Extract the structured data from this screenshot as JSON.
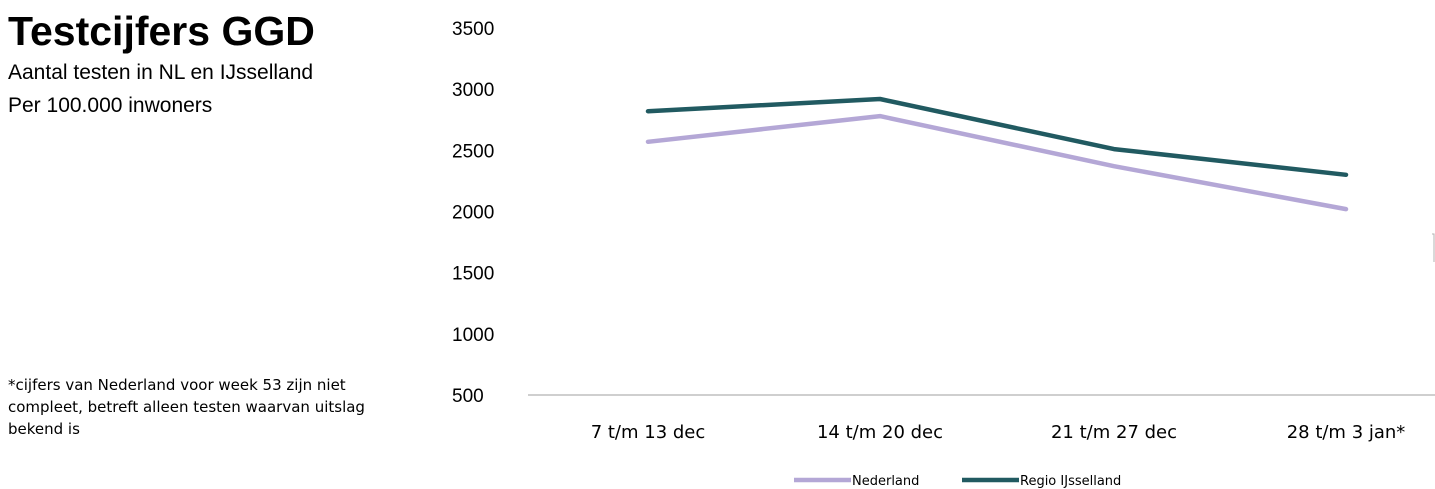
{
  "title": "Testcijfers GGD",
  "subtitle_line1": "Aantal testen in NL en IJsselland",
  "subtitle_line2": "Per 100.000 inwoners",
  "footnote": "*cijfers van Nederland voor week 53 zijn niet compleet, betreft alleen testen waarvan uitslag bekend is",
  "chart_data": {
    "type": "line",
    "categories": [
      "7 t/m 13 dec",
      "14 t/m 20 dec",
      "21 t/m 27 dec",
      "28 t/m 3 jan*"
    ],
    "series": [
      {
        "name": "Nederland",
        "values": [
          2570,
          2780,
          2370,
          2020
        ],
        "color": "#b4a7d6"
      },
      {
        "name": "Regio IJsselland",
        "values": [
          2820,
          2920,
          2510,
          2300
        ],
        "color": "#215a61"
      }
    ],
    "yticks": [
      500,
      1000,
      1500,
      2000,
      2500,
      3000,
      3500
    ],
    "ylim": [
      500,
      3500
    ],
    "grid": false,
    "legend": "bottom"
  }
}
